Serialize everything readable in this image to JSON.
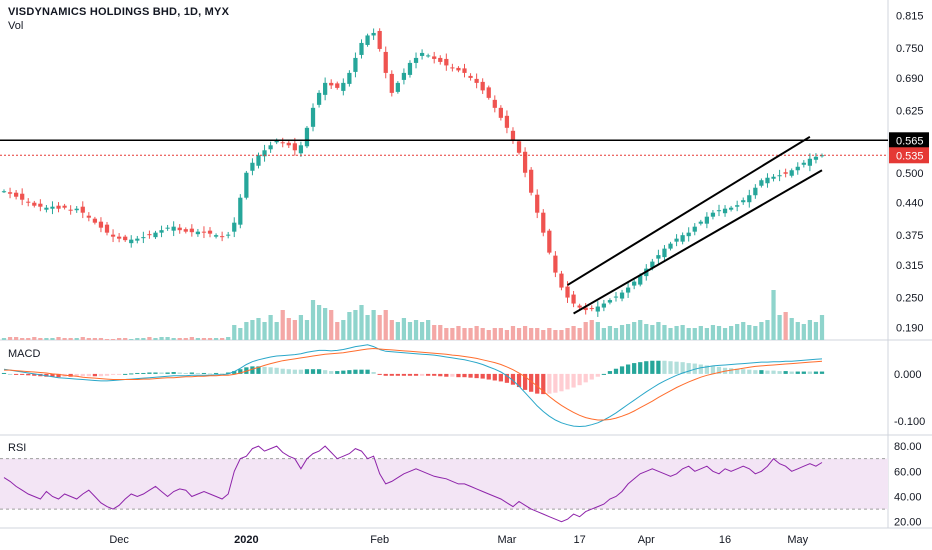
{
  "header": {
    "title": "VISDYNAMICS HOLDINGS BHD, 1D, MYX",
    "volume_label": "Vol"
  },
  "panels": {
    "macd_label": "MACD",
    "rsi_label": "RSI"
  },
  "colors": {
    "up": "#26a69a",
    "down": "#ef5350",
    "up_volume": "#8fd4cc",
    "down_volume": "#f4a8a6",
    "macd_line": "#2aa7c9",
    "signal_line": "#ff6d2d",
    "rsi_line": "#8e24aa",
    "rsi_band": "#f3e5f5",
    "price_line": "#e53935",
    "resistance": "#000000"
  },
  "chart_data": [
    {
      "type": "candlestick",
      "title": "VISDYNAMICS HOLDINGS BHD, 1D, MYX",
      "y_ticks": [
        "0.815",
        "0.750",
        "0.690",
        "0.625",
        "0.565",
        "0.500",
        "0.440",
        "0.375",
        "0.315",
        "0.250",
        "0.190"
      ],
      "ylim": [
        0.165,
        0.83
      ],
      "x_ticks": [
        "Dec",
        "2020",
        "Feb",
        "Mar",
        "17",
        "Apr",
        "16",
        "May"
      ],
      "x_tick_index": [
        19,
        40,
        62,
        83,
        95,
        106,
        119,
        131
      ],
      "n_bars": 136,
      "close": [
        0.463,
        0.458,
        0.452,
        0.446,
        0.44,
        0.434,
        0.432,
        0.43,
        0.432,
        0.428,
        0.43,
        0.425,
        0.428,
        0.42,
        0.41,
        0.4,
        0.39,
        0.38,
        0.372,
        0.368,
        0.365,
        0.366,
        0.368,
        0.371,
        0.375,
        0.38,
        0.385,
        0.39,
        0.392,
        0.385,
        0.382,
        0.381,
        0.382,
        0.38,
        0.378,
        0.375,
        0.372,
        0.376,
        0.4,
        0.45,
        0.5,
        0.52,
        0.535,
        0.545,
        0.555,
        0.565,
        0.56,
        0.555,
        0.545,
        0.555,
        0.59,
        0.63,
        0.66,
        0.68,
        0.675,
        0.67,
        0.68,
        0.7,
        0.73,
        0.76,
        0.775,
        0.78,
        0.748,
        0.7,
        0.66,
        0.68,
        0.7,
        0.72,
        0.73,
        0.74,
        0.735,
        0.728,
        0.722,
        0.715,
        0.71,
        0.705,
        0.7,
        0.69,
        0.68,
        0.665,
        0.65,
        0.63,
        0.61,
        0.59,
        0.565,
        0.54,
        0.5,
        0.46,
        0.42,
        0.38,
        0.34,
        0.3,
        0.27,
        0.25,
        0.238,
        0.23,
        0.225,
        0.228,
        0.232,
        0.238,
        0.245,
        0.252,
        0.26,
        0.27,
        0.282,
        0.295,
        0.308,
        0.322,
        0.335,
        0.348,
        0.358,
        0.368,
        0.375,
        0.38,
        0.392,
        0.402,
        0.412,
        0.42,
        0.425,
        0.428,
        0.43,
        0.435,
        0.445,
        0.455,
        0.47,
        0.485,
        0.49,
        0.492,
        0.495,
        0.498,
        0.505,
        0.512,
        0.52,
        0.528,
        0.532,
        0.535
      ],
      "volume": [
        0.02,
        0.03,
        0.03,
        0.02,
        0.02,
        0.03,
        0.02,
        0.02,
        0.02,
        0.03,
        0.02,
        0.02,
        0.02,
        0.03,
        0.02,
        0.02,
        0.02,
        0.01,
        0.01,
        0.02,
        0.02,
        0.01,
        0.02,
        0.02,
        0.03,
        0.02,
        0.03,
        0.03,
        0.02,
        0.02,
        0.02,
        0.03,
        0.02,
        0.02,
        0.02,
        0.02,
        0.02,
        0.03,
        0.15,
        0.12,
        0.18,
        0.2,
        0.22,
        0.18,
        0.25,
        0.18,
        0.3,
        0.22,
        0.2,
        0.25,
        0.2,
        0.4,
        0.35,
        0.32,
        0.3,
        0.18,
        0.2,
        0.28,
        0.3,
        0.35,
        0.25,
        0.3,
        0.25,
        0.3,
        0.2,
        0.18,
        0.22,
        0.18,
        0.2,
        0.18,
        0.2,
        0.15,
        0.15,
        0.12,
        0.12,
        0.14,
        0.12,
        0.12,
        0.14,
        0.12,
        0.1,
        0.12,
        0.12,
        0.1,
        0.14,
        0.12,
        0.14,
        0.12,
        0.12,
        0.1,
        0.12,
        0.1,
        0.1,
        0.12,
        0.14,
        0.12,
        0.18,
        0.2,
        0.18,
        0.12,
        0.14,
        0.12,
        0.15,
        0.16,
        0.18,
        0.2,
        0.16,
        0.15,
        0.18,
        0.15,
        0.12,
        0.14,
        0.15,
        0.12,
        0.12,
        0.14,
        0.12,
        0.15,
        0.14,
        0.12,
        0.14,
        0.16,
        0.18,
        0.15,
        0.14,
        0.18,
        0.2,
        0.5,
        0.25,
        0.28,
        0.22,
        0.18,
        0.16,
        0.2,
        0.18,
        0.25
      ]
    },
    {
      "type": "line",
      "title": "MACD",
      "y_ticks": [
        "0.000",
        "-0.100"
      ],
      "ylim": [
        -0.13,
        0.07
      ],
      "series": [
        {
          "name": "MACD",
          "values": [
            0.01,
            0.008,
            0.006,
            0.004,
            0.002,
            0.0,
            -0.002,
            -0.004,
            -0.006,
            -0.008,
            -0.009,
            -0.01,
            -0.011,
            -0.012,
            -0.013,
            -0.014,
            -0.015,
            -0.015,
            -0.014,
            -0.013,
            -0.012,
            -0.011,
            -0.01,
            -0.009,
            -0.008,
            -0.007,
            -0.006,
            -0.005,
            -0.004,
            -0.004,
            -0.004,
            -0.003,
            -0.003,
            -0.003,
            -0.003,
            -0.002,
            -0.002,
            0.0,
            0.005,
            0.012,
            0.02,
            0.026,
            0.03,
            0.033,
            0.036,
            0.038,
            0.039,
            0.04,
            0.041,
            0.043,
            0.046,
            0.048,
            0.05,
            0.05,
            0.049,
            0.05,
            0.052,
            0.055,
            0.058,
            0.06,
            0.062,
            0.058,
            0.052,
            0.048,
            0.047,
            0.046,
            0.045,
            0.044,
            0.043,
            0.042,
            0.041,
            0.04,
            0.038,
            0.036,
            0.034,
            0.032,
            0.03,
            0.027,
            0.024,
            0.02,
            0.015,
            0.01,
            0.004,
            -0.004,
            -0.014,
            -0.026,
            -0.04,
            -0.054,
            -0.068,
            -0.08,
            -0.09,
            -0.098,
            -0.104,
            -0.108,
            -0.111,
            -0.112,
            -0.111,
            -0.108,
            -0.104,
            -0.098,
            -0.091,
            -0.083,
            -0.074,
            -0.065,
            -0.056,
            -0.047,
            -0.038,
            -0.03,
            -0.022,
            -0.015,
            -0.009,
            -0.003,
            0.002,
            0.006,
            0.01,
            0.013,
            0.015,
            0.017,
            0.018,
            0.019,
            0.02,
            0.021,
            0.022,
            0.023,
            0.024,
            0.025,
            0.025,
            0.026,
            0.026,
            0.027,
            0.027,
            0.028,
            0.029,
            0.03,
            0.031,
            0.032
          ]
        },
        {
          "name": "Signal",
          "values": [
            0.008,
            0.008,
            0.007,
            0.006,
            0.005,
            0.004,
            0.003,
            0.002,
            0.0,
            -0.001,
            -0.003,
            -0.004,
            -0.005,
            -0.007,
            -0.008,
            -0.009,
            -0.01,
            -0.011,
            -0.012,
            -0.012,
            -0.012,
            -0.012,
            -0.012,
            -0.011,
            -0.011,
            -0.01,
            -0.009,
            -0.008,
            -0.008,
            -0.007,
            -0.006,
            -0.006,
            -0.005,
            -0.005,
            -0.004,
            -0.004,
            -0.003,
            -0.003,
            -0.001,
            0.002,
            0.006,
            0.01,
            0.014,
            0.018,
            0.022,
            0.025,
            0.028,
            0.03,
            0.032,
            0.034,
            0.036,
            0.038,
            0.04,
            0.042,
            0.043,
            0.044,
            0.045,
            0.047,
            0.049,
            0.051,
            0.053,
            0.054,
            0.053,
            0.052,
            0.051,
            0.05,
            0.049,
            0.048,
            0.047,
            0.046,
            0.045,
            0.044,
            0.043,
            0.042,
            0.04,
            0.039,
            0.037,
            0.035,
            0.033,
            0.03,
            0.027,
            0.024,
            0.02,
            0.015,
            0.009,
            0.002,
            -0.006,
            -0.016,
            -0.026,
            -0.037,
            -0.048,
            -0.058,
            -0.067,
            -0.075,
            -0.082,
            -0.088,
            -0.093,
            -0.096,
            -0.098,
            -0.098,
            -0.097,
            -0.094,
            -0.09,
            -0.085,
            -0.079,
            -0.072,
            -0.065,
            -0.058,
            -0.05,
            -0.043,
            -0.036,
            -0.029,
            -0.023,
            -0.017,
            -0.012,
            -0.007,
            -0.003,
            0.0,
            0.003,
            0.006,
            0.008,
            0.01,
            0.012,
            0.014,
            0.016,
            0.017,
            0.018,
            0.019,
            0.02,
            0.021,
            0.022,
            0.023,
            0.024,
            0.025,
            0.026,
            0.027
          ]
        }
      ]
    },
    {
      "type": "line",
      "title": "RSI",
      "y_ticks": [
        "80.00",
        "60.00",
        "40.00",
        "20.00"
      ],
      "ylim": [
        15,
        88
      ],
      "band": [
        30,
        70
      ],
      "series": [
        {
          "name": "RSI",
          "values": [
            55,
            52,
            48,
            45,
            42,
            40,
            38,
            44,
            40,
            38,
            42,
            40,
            38,
            42,
            45,
            40,
            35,
            32,
            30,
            33,
            38,
            42,
            40,
            42,
            45,
            48,
            44,
            40,
            44,
            46,
            45,
            40,
            42,
            44,
            42,
            40,
            38,
            42,
            60,
            70,
            72,
            78,
            80,
            76,
            78,
            80,
            75,
            72,
            70,
            62,
            70,
            74,
            76,
            80,
            75,
            70,
            72,
            74,
            78,
            76,
            70,
            72,
            58,
            50,
            52,
            55,
            58,
            60,
            62,
            60,
            58,
            56,
            55,
            54,
            52,
            50,
            50,
            48,
            46,
            44,
            42,
            40,
            38,
            35,
            32,
            36,
            33,
            30,
            28,
            26,
            24,
            22,
            20,
            22,
            26,
            24,
            28,
            30,
            32,
            34,
            38,
            40,
            44,
            50,
            54,
            58,
            60,
            62,
            60,
            58,
            56,
            58,
            62,
            64,
            60,
            62,
            64,
            60,
            58,
            62,
            60,
            62,
            64,
            62,
            58,
            60,
            64,
            70,
            66,
            64,
            60,
            62,
            64,
            66,
            64,
            67
          ]
        }
      ]
    }
  ],
  "price_tags": {
    "resistance": "0.565",
    "last_price": "0.535"
  },
  "trend_channel": {
    "upper": {
      "from": [
        93,
        0.275
      ],
      "to": [
        133,
        0.572
      ]
    },
    "lower": {
      "from": [
        94,
        0.218
      ],
      "to": [
        135,
        0.505
      ]
    }
  },
  "resistance_level": 0.565
}
